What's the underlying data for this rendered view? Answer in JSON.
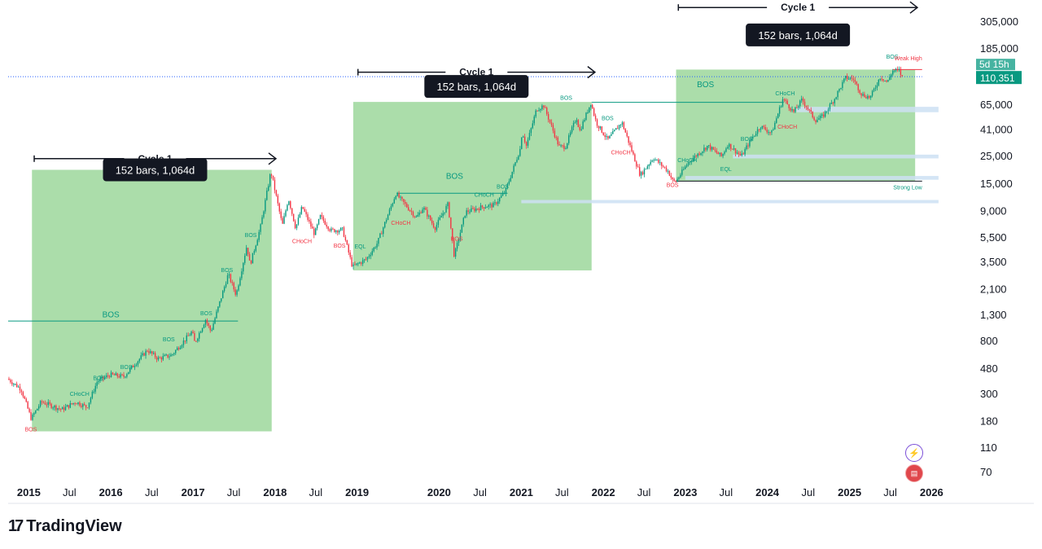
{
  "chart_data": {
    "type": "candlestick",
    "y_scale": "log",
    "ylim": [
      60,
      460000
    ],
    "xlim": [
      "2014-10-01",
      "2026-06-01"
    ],
    "y_ticks": [
      "305,000",
      "185,000",
      "65,000",
      "41,000",
      "25,000",
      "15,000",
      "9,000",
      "5,500",
      "3,500",
      "2,100",
      "1,300",
      "800",
      "480",
      "300",
      "180",
      "110",
      "70"
    ],
    "y_tick_values": [
      305000,
      185000,
      65000,
      41000,
      25000,
      15000,
      9000,
      5500,
      3500,
      2100,
      1300,
      800,
      480,
      300,
      180,
      110,
      70
    ],
    "x_ticks": [
      {
        "label": "2015",
        "date": "2015-01-01",
        "year": true
      },
      {
        "label": "Jul",
        "date": "2015-07-01",
        "year": false
      },
      {
        "label": "2016",
        "date": "2016-01-01",
        "year": true
      },
      {
        "label": "Jul",
        "date": "2016-07-01",
        "year": false
      },
      {
        "label": "2017",
        "date": "2017-01-01",
        "year": true
      },
      {
        "label": "Jul",
        "date": "2017-07-01",
        "year": false
      },
      {
        "label": "2018",
        "date": "2018-01-01",
        "year": true
      },
      {
        "label": "Jul",
        "date": "2018-07-01",
        "year": false
      },
      {
        "label": "2019",
        "date": "2019-01-01",
        "year": true
      },
      {
        "label": "2020",
        "date": "2020-01-01",
        "year": true
      },
      {
        "label": "Jul",
        "date": "2020-07-01",
        "year": false
      },
      {
        "label": "2021",
        "date": "2021-01-01",
        "year": true
      },
      {
        "label": "Jul",
        "date": "2021-07-01",
        "year": false
      },
      {
        "label": "2022",
        "date": "2022-01-01",
        "year": true
      },
      {
        "label": "Jul",
        "date": "2022-07-01",
        "year": false
      },
      {
        "label": "2023",
        "date": "2023-01-01",
        "year": true
      },
      {
        "label": "Jul",
        "date": "2023-07-01",
        "year": false
      },
      {
        "label": "2024",
        "date": "2024-01-01",
        "year": true
      },
      {
        "label": "Jul",
        "date": "2024-07-01",
        "year": false
      },
      {
        "label": "2025",
        "date": "2025-01-01",
        "year": true
      },
      {
        "label": "Jul",
        "date": "2025-07-01",
        "year": false
      },
      {
        "label": "2026",
        "date": "2026-01-01",
        "year": true
      }
    ],
    "price_path": [
      [
        "2014-10-01",
        400
      ],
      [
        "2014-12-01",
        330
      ],
      [
        "2015-01-15",
        190
      ],
      [
        "2015-03-01",
        260
      ],
      [
        "2015-06-01",
        225
      ],
      [
        "2015-08-01",
        260
      ],
      [
        "2015-09-20",
        235
      ],
      [
        "2015-11-05",
        380
      ],
      [
        "2016-01-01",
        430
      ],
      [
        "2016-03-01",
        415
      ],
      [
        "2016-06-15",
        680
      ],
      [
        "2016-08-01",
        580
      ],
      [
        "2016-10-01",
        620
      ],
      [
        "2016-12-31",
        960
      ],
      [
        "2017-01-12",
        780
      ],
      [
        "2017-03-01",
        1200
      ],
      [
        "2017-03-25",
        960
      ],
      [
        "2017-06-10",
        2800
      ],
      [
        "2017-07-15",
        1900
      ],
      [
        "2017-09-01",
        4800
      ],
      [
        "2017-09-15",
        3300
      ],
      [
        "2017-11-01",
        6800
      ],
      [
        "2017-12-17",
        19000
      ],
      [
        "2018-02-06",
        6900
      ],
      [
        "2018-03-05",
        11500
      ],
      [
        "2018-04-06",
        6600
      ],
      [
        "2018-05-05",
        9800
      ],
      [
        "2018-06-29",
        5900
      ],
      [
        "2018-07-25",
        8200
      ],
      [
        "2018-09-10",
        6300
      ],
      [
        "2018-11-01",
        6400
      ],
      [
        "2018-12-15",
        3200
      ],
      [
        "2019-02-15",
        3700
      ],
      [
        "2019-04-05",
        5000
      ],
      [
        "2019-06-26",
        12500
      ],
      [
        "2019-08-01",
        10500
      ],
      [
        "2019-09-26",
        8000
      ],
      [
        "2019-10-26",
        9700
      ],
      [
        "2019-12-17",
        6600
      ],
      [
        "2020-02-13",
        10300
      ],
      [
        "2020-03-12",
        3900
      ],
      [
        "2020-05-01",
        8900
      ],
      [
        "2020-07-26",
        9900
      ],
      [
        "2020-09-05",
        10100
      ],
      [
        "2020-10-25",
        13000
      ],
      [
        "2020-12-31",
        29000
      ],
      [
        "2021-01-08",
        40000
      ],
      [
        "2021-01-27",
        30500
      ],
      [
        "2021-03-13",
        60000
      ],
      [
        "2021-04-14",
        64500
      ],
      [
        "2021-06-22",
        30000
      ],
      [
        "2021-07-20",
        30000
      ],
      [
        "2021-09-07",
        52000
      ],
      [
        "2021-09-21",
        40000
      ],
      [
        "2021-11-10",
        68000
      ],
      [
        "2021-12-04",
        47000
      ],
      [
        "2022-01-24",
        34000
      ],
      [
        "2022-03-28",
        47400
      ],
      [
        "2022-05-12",
        27500
      ],
      [
        "2022-06-18",
        17600
      ],
      [
        "2022-08-15",
        24400
      ],
      [
        "2022-10-20",
        19000
      ],
      [
        "2022-11-09",
        16000
      ],
      [
        "2022-11-21",
        15500
      ],
      [
        "2023-01-20",
        22700
      ],
      [
        "2023-04-14",
        30500
      ],
      [
        "2023-06-15",
        25000
      ],
      [
        "2023-07-13",
        31500
      ],
      [
        "2023-09-11",
        25000
      ],
      [
        "2023-10-24",
        34500
      ],
      [
        "2023-12-05",
        44000
      ],
      [
        "2024-01-23",
        38500
      ],
      [
        "2024-03-14",
        73500
      ],
      [
        "2024-05-01",
        57000
      ],
      [
        "2024-06-07",
        71900
      ],
      [
        "2024-08-05",
        49000
      ],
      [
        "2024-09-06",
        52500
      ],
      [
        "2024-10-29",
        73000
      ],
      [
        "2024-12-17",
        108000
      ],
      [
        "2025-01-21",
        106000
      ],
      [
        "2025-02-28",
        79000
      ],
      [
        "2025-04-07",
        75000
      ],
      [
        "2025-05-22",
        111000
      ],
      [
        "2025-06-22",
        99000
      ],
      [
        "2025-07-14",
        123000
      ],
      [
        "2025-08-14",
        124000
      ],
      [
        "2025-08-24",
        110351
      ]
    ],
    "boxes": [
      {
        "from": "2015-01-15",
        "to": "2017-12-17",
        "low": 150,
        "high": 19500
      },
      {
        "from": "2018-12-15",
        "to": "2021-11-10",
        "low": 3000,
        "high": 69000
      },
      {
        "from": "2022-11-21",
        "to": "2025-10-20",
        "low": 15800,
        "high": 126000
      }
    ],
    "cycles": [
      {
        "label": "Cycle 1",
        "from": "2015-01-25",
        "to": "2018-01-05",
        "price": 24000,
        "duration": "152 bars, 1,064d",
        "tag_price": 19500
      },
      {
        "label": "Cycle 1",
        "from": "2019-01-05",
        "to": "2021-11-25",
        "price": 120000,
        "duration": "152 bars, 1,064d",
        "tag_price": 92000
      },
      {
        "label": "Cycle 1",
        "from": "2022-12-01",
        "to": "2025-10-30",
        "price": 400000,
        "duration": "152 bars, 1,064d",
        "tag_price": 240000
      }
    ],
    "zones": [
      {
        "from": "2024-05-10",
        "to": "2026-02-01",
        "price": 60000,
        "band": 0.05
      },
      {
        "from": "2023-08-01",
        "to": "2026-02-01",
        "price": 25000,
        "band": 0.035
      },
      {
        "from": "2023-01-01",
        "to": "2026-02-01",
        "price": 16800,
        "band": 0.035
      },
      {
        "from": "2021-01-01",
        "to": "2026-02-01",
        "price": 10800,
        "band": 0.03
      }
    ],
    "level_lines": [
      {
        "from": "2014-10-01",
        "to": "2017-07-20",
        "price": 1170,
        "color": "#089981",
        "dashed": false
      },
      {
        "from": "2019-06-26",
        "to": "2020-11-01",
        "price": 12600,
        "color": "#089981",
        "dashed": false
      },
      {
        "from": "2021-11-10",
        "to": "2024-03-14",
        "price": 68500,
        "color": "#089981",
        "dashed": false
      },
      {
        "from": "2022-11-21",
        "to": "2025-11-20",
        "price": 15800,
        "color": "#131722",
        "dashed": false
      },
      {
        "from": "2025-07-14",
        "to": "2025-11-20",
        "price": 126000,
        "color": "#f23645",
        "dashed": false
      },
      {
        "from": "2014-10-01",
        "to": "2025-11-20",
        "price": 110351,
        "color": "#2962ff",
        "dashed": true
      }
    ],
    "annotations": [
      {
        "text": "BOS",
        "date": "2015-01-10",
        "price": 150,
        "color": "#f23645"
      },
      {
        "text": "CHoCH",
        "date": "2015-08-15",
        "price": 290,
        "color": "#089981"
      },
      {
        "text": "BOS",
        "date": "2015-11-10",
        "price": 390,
        "color": "#089981"
      },
      {
        "text": "BOS",
        "date": "2016-03-10",
        "price": 480,
        "color": "#089981"
      },
      {
        "text": "BOS",
        "date": "2016-09-15",
        "price": 800,
        "color": "#089981"
      },
      {
        "text": "BOS",
        "date": "2017-03-01",
        "price": 1300,
        "color": "#089981"
      },
      {
        "text": "BOS",
        "date": "2017-06-01",
        "price": 2900,
        "color": "#089981"
      },
      {
        "text": "BOS",
        "date": "2017-09-15",
        "price": 5600,
        "color": "#089981"
      },
      {
        "text": "CHoCH",
        "date": "2018-05-01",
        "price": 5000,
        "color": "#f23645"
      },
      {
        "text": "BOS",
        "date": "2018-10-15",
        "price": 4600,
        "color": "#f23645"
      },
      {
        "text": "EQL",
        "date": "2019-01-15",
        "price": 4500,
        "color": "#089981"
      },
      {
        "text": "CHoCH",
        "date": "2019-07-15",
        "price": 7000,
        "color": "#f23645"
      },
      {
        "text": "BOS",
        "date": "2020-03-20",
        "price": 5200,
        "color": "#f23645"
      },
      {
        "text": "CHoCH",
        "date": "2020-07-20",
        "price": 11800,
        "color": "#089981"
      },
      {
        "text": "BOS",
        "date": "2020-10-10",
        "price": 13800,
        "color": "#089981"
      },
      {
        "text": "BOS",
        "date": "2021-07-20",
        "price": 72000,
        "color": "#089981"
      },
      {
        "text": "BOS",
        "date": "2022-01-20",
        "price": 49000,
        "color": "#089981"
      },
      {
        "text": "CHoCH",
        "date": "2022-03-20",
        "price": 26000,
        "color": "#f23645"
      },
      {
        "text": "BOS",
        "date": "2022-11-05",
        "price": 14200,
        "color": "#f23645"
      },
      {
        "text": "CHoCH",
        "date": "2023-01-10",
        "price": 22500,
        "color": "#089981"
      },
      {
        "text": "EQL",
        "date": "2023-07-01",
        "price": 19000,
        "color": "#089981"
      },
      {
        "text": "BOS",
        "date": "2023-10-01",
        "price": 33500,
        "color": "#089981"
      },
      {
        "text": "CHoCH",
        "date": "2024-03-20",
        "price": 78000,
        "color": "#089981"
      },
      {
        "text": "CHoCH",
        "date": "2024-03-30",
        "price": 42000,
        "color": "#f23645"
      },
      {
        "text": "BOS",
        "date": "2025-07-10",
        "price": 155000,
        "color": "#089981"
      },
      {
        "text": "Weak High",
        "date": "2025-11-20",
        "price": 150000,
        "color": "#f23645"
      },
      {
        "text": "Strong Low",
        "date": "2025-11-20",
        "price": 13500,
        "color": "#089981"
      }
    ],
    "bos_labels": [
      {
        "text": "BOS",
        "date": "2016-01-01",
        "price": 1250
      },
      {
        "text": "BOS",
        "date": "2020-03-10",
        "price": 16500
      },
      {
        "text": "BOS",
        "date": "2023-04-01",
        "price": 91000
      }
    ],
    "last_price": {
      "value": "110,351",
      "countdown": "5d 15h"
    }
  },
  "branding": {
    "name": "TradingView",
    "mark": "17"
  },
  "colors": {
    "up": "#089981",
    "down": "#f23645",
    "box": "#a7dba5",
    "zone": "#cde1f3",
    "panel": "#131722"
  },
  "icons": [
    "bolt-icon",
    "us-flag-icon"
  ]
}
